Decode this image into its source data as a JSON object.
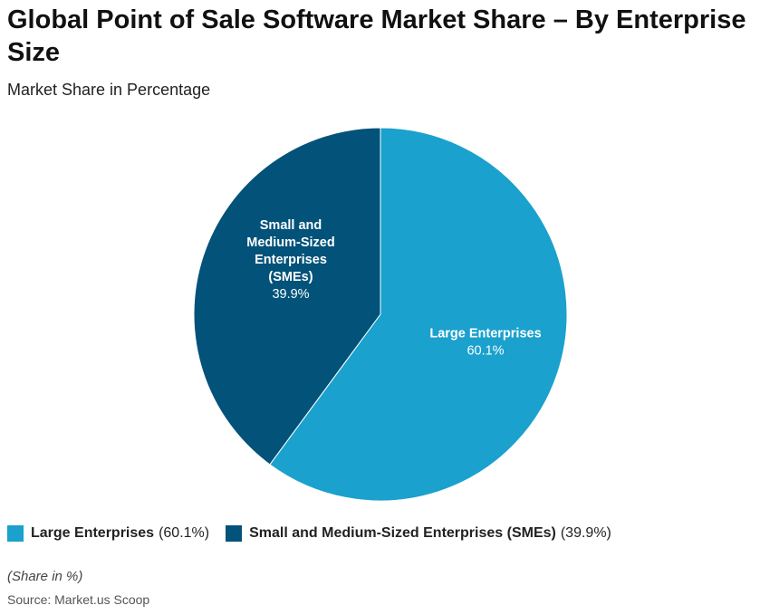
{
  "chart_data": {
    "type": "pie",
    "title": "Global Point of Sale Software Market Share – By Enterprise Size",
    "subtitle": "Market Share in Percentage",
    "slices": [
      {
        "name": "Large Enterprises",
        "value": 60.1,
        "value_label": "60.1%",
        "legend_value": "(60.1%)",
        "color": "#1aa1cd",
        "label_lines": [
          "Large Enterprises"
        ]
      },
      {
        "name": "Small and Medium-Sized Enterprises (SMEs)",
        "value": 39.9,
        "value_label": "39.9%",
        "legend_value": "(39.9%)",
        "color": "#02527a",
        "label_lines": [
          "Small and",
          "Medium-Sized",
          "Enterprises",
          "(SMEs)"
        ]
      }
    ],
    "start_angle": "12 o'clock, clockwise",
    "legend_position": "bottom-left"
  },
  "note": "(Share in %)",
  "source": "Source: Market.us Scoop"
}
